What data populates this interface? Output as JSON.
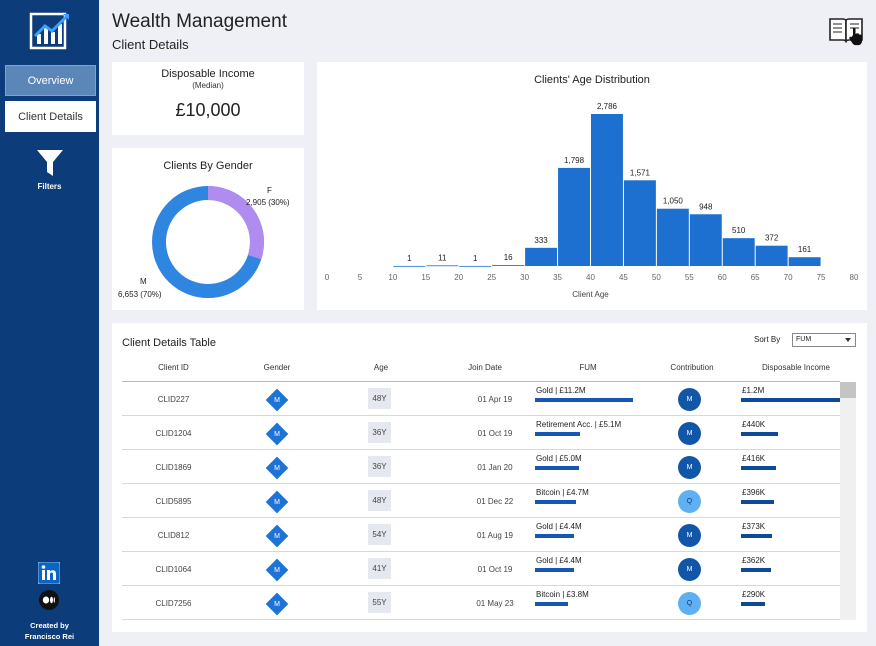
{
  "sidebar": {
    "nav": [
      {
        "label": "Overview"
      },
      {
        "label": "Client Details"
      }
    ],
    "filters_label": "Filters",
    "credit_line1": "Created by",
    "credit_line2": "Francisco Rei",
    "icons": [
      "app-logo-icon",
      "filter-funnel-icon",
      "linkedin-icon",
      "medium-icon"
    ]
  },
  "header": {
    "title": "Wealth Management",
    "subtitle": "Client Details",
    "guide_icon": "book-pointer-icon"
  },
  "income_card": {
    "title": "Disposable Income",
    "subtitle": "(Median)",
    "value": "£10,000"
  },
  "gender_card": {
    "title": "Clients By Gender",
    "f_label": "F",
    "f_value": "2,905 (30%)",
    "m_label": "M",
    "m_value": "6,653 (70%)",
    "colors": {
      "F": "#b18cf0",
      "M": "#2f86e0"
    }
  },
  "age_card": {
    "chart_data": {
      "type": "bar",
      "title": "Clients' Age Distribution",
      "xlabel": "Client Age",
      "ylabel": "",
      "xlim": [
        0,
        80
      ],
      "x_ticks": [
        "0",
        "5",
        "10",
        "15",
        "20",
        "25",
        "30",
        "35",
        "40",
        "45",
        "50",
        "55",
        "60",
        "65",
        "70",
        "75",
        "80"
      ],
      "bins_start": [
        10,
        15,
        20,
        25,
        30,
        35,
        40,
        45,
        50,
        55,
        60,
        65,
        70
      ],
      "bin_width": 5,
      "values": [
        1,
        11,
        1,
        16,
        333,
        1798,
        2786,
        1571,
        1050,
        948,
        510,
        372,
        161
      ],
      "value_labels": [
        "1",
        "11",
        "1",
        "16",
        "333",
        "1,798",
        "2,786",
        "1,571",
        "1,050",
        "948",
        "510",
        "372",
        "161"
      ],
      "bar_color": "#1d6fd0",
      "grid": false
    }
  },
  "table": {
    "title": "Client Details Table",
    "sort_label": "Sort By",
    "sort_value": "FUM",
    "columns": [
      "Client ID",
      "Gender",
      "Age",
      "Join Date",
      "FUM",
      "Contribution",
      "Disposable Income"
    ],
    "rows": [
      {
        "id": "CLID227",
        "gender": "M",
        "age": "48Y",
        "join": "01 Apr 19",
        "fum": "Gold | £11.2M",
        "fum_value": 11.2,
        "contrib": "M",
        "income": "£1.2M",
        "income_value": 1200
      },
      {
        "id": "CLID1204",
        "gender": "M",
        "age": "36Y",
        "join": "01 Oct 19",
        "fum": "Retirement Acc. | £5.1M",
        "fum_value": 5.1,
        "contrib": "M",
        "income": "£440K",
        "income_value": 440
      },
      {
        "id": "CLID1869",
        "gender": "M",
        "age": "36Y",
        "join": "01 Jan 20",
        "fum": "Gold | £5.0M",
        "fum_value": 5.0,
        "contrib": "M",
        "income": "£416K",
        "income_value": 416
      },
      {
        "id": "CLID5895",
        "gender": "M",
        "age": "48Y",
        "join": "01 Dec 22",
        "fum": "Bitcoin | £4.7M",
        "fum_value": 4.7,
        "contrib": "Q",
        "income": "£396K",
        "income_value": 396
      },
      {
        "id": "CLID812",
        "gender": "M",
        "age": "54Y",
        "join": "01 Aug 19",
        "fum": "Gold | £4.4M",
        "fum_value": 4.4,
        "contrib": "M",
        "income": "£373K",
        "income_value": 373
      },
      {
        "id": "CLID1064",
        "gender": "M",
        "age": "41Y",
        "join": "01 Oct 19",
        "fum": "Gold | £4.4M",
        "fum_value": 4.4,
        "contrib": "M",
        "income": "£362K",
        "income_value": 362
      },
      {
        "id": "CLID7256",
        "gender": "M",
        "age": "55Y",
        "join": "01 May 23",
        "fum": "Bitcoin | £3.8M",
        "fum_value": 3.8,
        "contrib": "Q",
        "income": "£290K",
        "income_value": 290
      }
    ],
    "contrib_colors": {
      "M": "#1256a8",
      "Q": "#5fb0f2"
    }
  }
}
